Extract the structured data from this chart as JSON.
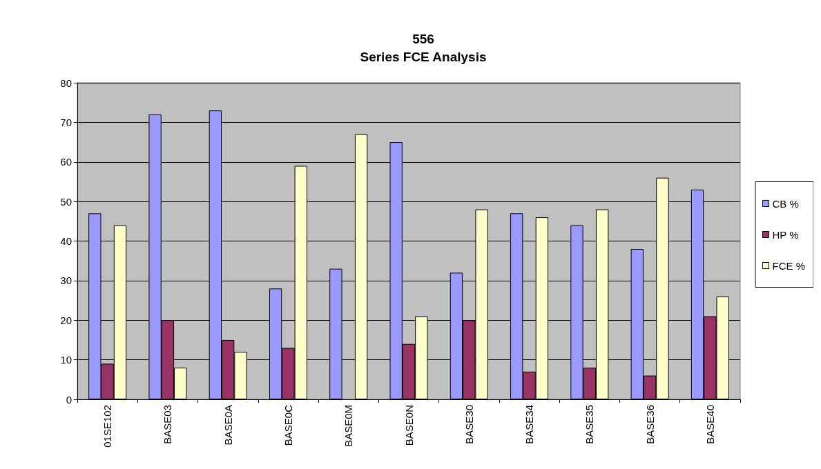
{
  "chart_data": {
    "type": "bar",
    "title": "556\nSeries FCE Analysis",
    "categories": [
      "01SE102",
      "BASE03",
      "BASE0A",
      "BASE0C",
      "BASE0M",
      "BASE0N",
      "BASE30",
      "BASE34",
      "BASE35",
      "BASE36",
      "BASE40"
    ],
    "series": [
      {
        "name": "CB %",
        "color": "#9999ff",
        "values": [
          47,
          72,
          73,
          28,
          33,
          65,
          32,
          47,
          44,
          38,
          53
        ]
      },
      {
        "name": "HP %",
        "color": "#993366",
        "values": [
          9,
          20,
          15,
          13,
          null,
          14,
          20,
          7,
          8,
          6,
          21
        ]
      },
      {
        "name": "FCE %",
        "color": "#ffffcc",
        "values": [
          44,
          8,
          12,
          59,
          67,
          21,
          48,
          46,
          48,
          56,
          26
        ]
      }
    ],
    "ylim": [
      0,
      80
    ],
    "yticks": [
      0,
      10,
      20,
      30,
      40,
      50,
      60,
      70,
      80
    ],
    "grid": "y",
    "legend": "right"
  }
}
